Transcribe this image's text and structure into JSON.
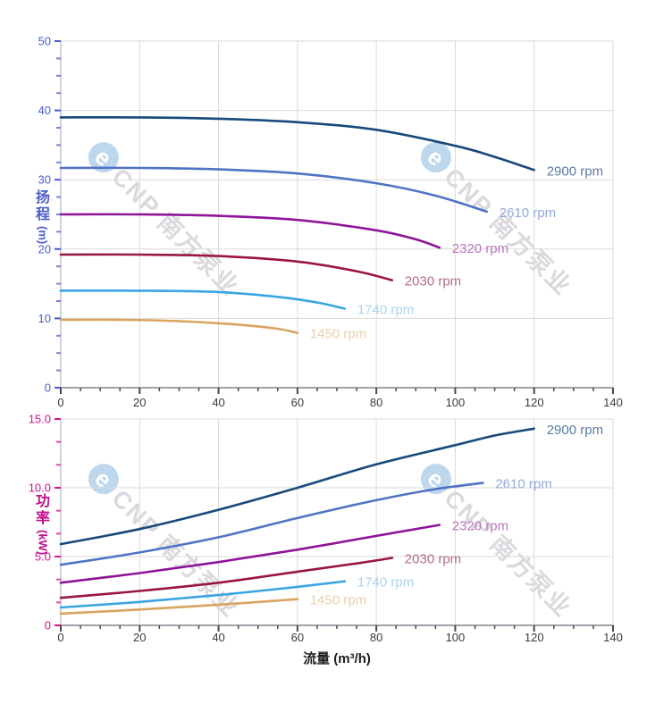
{
  "watermark": {
    "logo": "e",
    "text": "CNP 南方泵业",
    "text_color": "#d9d9de",
    "logo_color": "#bdd7ed"
  },
  "chart_data": [
    {
      "type": "line",
      "id": "head-vs-flow",
      "title": "",
      "ylabel_cn": "扬程",
      "ylabel_unit": "(m)",
      "xlabel": "",
      "xlim": [
        0,
        140
      ],
      "ylim": [
        0,
        50
      ],
      "x_ticks": [
        0,
        20,
        40,
        60,
        80,
        100,
        120,
        140
      ],
      "x_tick_labels": [
        "0",
        "20",
        "40",
        "60",
        "80",
        "100",
        "120",
        "140"
      ],
      "x_minor_step": 5,
      "y_ticks": [
        0,
        10,
        20,
        30,
        40,
        50
      ],
      "y_tick_labels": [
        "0",
        "10",
        "20",
        "30",
        "40",
        "50"
      ],
      "y_minor_divisions": 4,
      "grid": true,
      "axis_color": "#4a5ccb",
      "x_label_color": "#3a3a3a",
      "series": [
        {
          "name": "2900 rpm",
          "color": "#17497c",
          "label_color": "#5a7ba1",
          "x": [
            0,
            20,
            40,
            60,
            80,
            100,
            110,
            120
          ],
          "y": [
            39,
            39,
            38.8,
            38.3,
            37.2,
            34.9,
            33.3,
            31.4
          ]
        },
        {
          "name": "2610 rpm",
          "color": "#4f74c4",
          "label_color": "#93a9da",
          "x": [
            0,
            20,
            40,
            60,
            80,
            95,
            108
          ],
          "y": [
            31.7,
            31.7,
            31.5,
            30.9,
            29.5,
            27.7,
            25.4
          ]
        },
        {
          "name": "2320 rpm",
          "color": "#8e1499",
          "label_color": "#ba74be",
          "x": [
            0,
            20,
            40,
            60,
            80,
            90,
            96
          ],
          "y": [
            25,
            25,
            24.8,
            24.2,
            22.7,
            21.4,
            20.2
          ]
        },
        {
          "name": "2030 rpm",
          "color": "#9a163e",
          "label_color": "#b76c82",
          "x": [
            0,
            20,
            40,
            60,
            75,
            84
          ],
          "y": [
            19.2,
            19.2,
            19.0,
            18.2,
            16.8,
            15.5
          ]
        },
        {
          "name": "1740 rpm",
          "color": "#3aa5e1",
          "label_color": "#a9d3ef",
          "x": [
            0,
            20,
            40,
            55,
            65,
            72
          ],
          "y": [
            14,
            14,
            13.8,
            13.1,
            12.3,
            11.4
          ]
        },
        {
          "name": "1450 rpm",
          "color": "#d8a55e",
          "label_color": "#e9d0ab",
          "x": [
            0,
            15,
            30,
            45,
            55,
            60
          ],
          "y": [
            9.8,
            9.8,
            9.6,
            9.1,
            8.5,
            7.9
          ]
        }
      ]
    },
    {
      "type": "line",
      "id": "power-vs-flow",
      "title": "",
      "ylabel_cn": "功率",
      "ylabel_unit": "(kW)",
      "xlabel": "流量 (m³/h)",
      "xlim": [
        0,
        140
      ],
      "ylim": [
        0,
        15
      ],
      "x_ticks": [
        0,
        20,
        40,
        60,
        80,
        100,
        120,
        140
      ],
      "x_tick_labels": [
        "0",
        "20",
        "40",
        "60",
        "80",
        "100",
        "120",
        "140"
      ],
      "x_minor_step": 5,
      "y_ticks": [
        0,
        5,
        10,
        15
      ],
      "y_tick_labels": [
        "0",
        "5.0",
        "10.0",
        "15.0"
      ],
      "y_minor_divisions": 3,
      "grid": true,
      "axis_color": "#d61190",
      "x_label_color": "#3a3a3a",
      "series": [
        {
          "name": "2900 rpm",
          "color": "#17497c",
          "label_color": "#5a7ba1",
          "x": [
            0,
            20,
            40,
            60,
            80,
            100,
            110,
            120
          ],
          "y": [
            5.9,
            7.0,
            8.4,
            10.0,
            11.7,
            13.1,
            13.8,
            14.3
          ]
        },
        {
          "name": "2610 rpm",
          "color": "#4f74c4",
          "label_color": "#93a9da",
          "x": [
            0,
            20,
            40,
            60,
            80,
            95,
            107
          ],
          "y": [
            4.4,
            5.3,
            6.4,
            7.8,
            9.1,
            9.9,
            10.35
          ]
        },
        {
          "name": "2320 rpm",
          "color": "#8e1499",
          "label_color": "#ba74be",
          "x": [
            0,
            20,
            40,
            60,
            80,
            96
          ],
          "y": [
            3.1,
            3.8,
            4.6,
            5.5,
            6.5,
            7.3
          ]
        },
        {
          "name": "2030 rpm",
          "color": "#9a163e",
          "label_color": "#b76c82",
          "x": [
            0,
            20,
            40,
            60,
            75,
            84
          ],
          "y": [
            2.0,
            2.5,
            3.1,
            3.9,
            4.5,
            4.9
          ]
        },
        {
          "name": "1740 rpm",
          "color": "#3aa5e1",
          "label_color": "#a9d3ef",
          "x": [
            0,
            20,
            40,
            60,
            72
          ],
          "y": [
            1.3,
            1.7,
            2.2,
            2.8,
            3.2
          ]
        },
        {
          "name": "1450 rpm",
          "color": "#d8a55e",
          "label_color": "#e9d0ab",
          "x": [
            0,
            20,
            40,
            60
          ],
          "y": [
            0.85,
            1.15,
            1.5,
            1.9
          ]
        }
      ]
    }
  ]
}
